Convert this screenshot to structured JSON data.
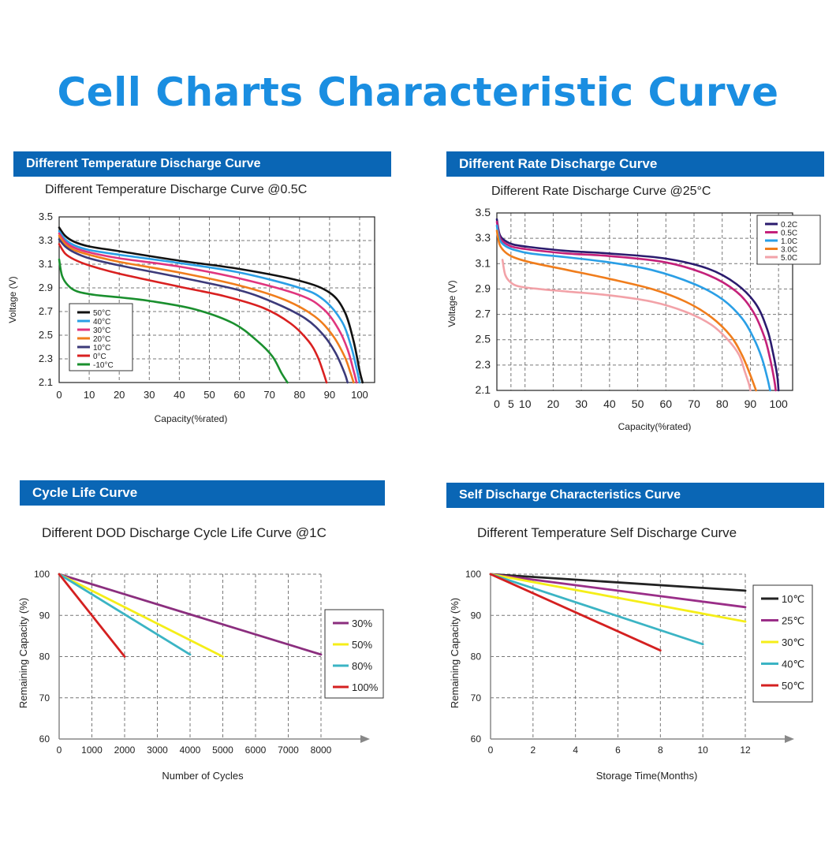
{
  "page_title": "Cell Charts Characteristic Curve",
  "colors": {
    "title_blue": "#1a8ee1",
    "header_bg": "#0a66b5"
  },
  "chart_data": [
    {
      "id": "temp",
      "header": "Different Temperature Discharge Curve",
      "title": "Different Temperature Discharge Curve @0.5C",
      "type": "line",
      "xlabel": "Capacity(%rated)",
      "ylabel": "Voltage (V)",
      "xlim": [
        0,
        105
      ],
      "ylim": [
        2.1,
        3.5
      ],
      "xticks": [
        0,
        10,
        20,
        30,
        40,
        50,
        60,
        70,
        80,
        90,
        100
      ],
      "yticks": [
        2.1,
        2.3,
        2.5,
        2.7,
        2.9,
        3.1,
        3.3,
        3.5
      ],
      "ytick_labels": [
        "2.1",
        "2.3",
        "2.5",
        "2.7",
        "2.9",
        "3.1",
        "3.3",
        "3.5"
      ],
      "grid": true,
      "legend": "left",
      "series": [
        {
          "name": "50°C",
          "color": "#111111",
          "x": [
            0,
            2,
            5,
            10,
            20,
            40,
            60,
            80,
            90,
            95,
            98,
            100,
            101
          ],
          "y": [
            3.41,
            3.34,
            3.29,
            3.25,
            3.21,
            3.13,
            3.06,
            2.96,
            2.86,
            2.7,
            2.45,
            2.2,
            2.1
          ]
        },
        {
          "name": "40°C",
          "color": "#2a9fe6",
          "x": [
            0,
            2,
            5,
            10,
            20,
            40,
            60,
            80,
            88,
            94,
            97,
            99,
            100
          ],
          "y": [
            3.38,
            3.31,
            3.26,
            3.22,
            3.18,
            3.11,
            3.03,
            2.9,
            2.8,
            2.62,
            2.42,
            2.22,
            2.1
          ]
        },
        {
          "name": "30°C",
          "color": "#e0357e",
          "x": [
            0,
            2,
            5,
            10,
            20,
            40,
            60,
            80,
            88,
            93,
            96,
            98,
            99
          ],
          "y": [
            3.36,
            3.29,
            3.24,
            3.2,
            3.15,
            3.08,
            2.98,
            2.84,
            2.72,
            2.55,
            2.38,
            2.2,
            2.1
          ]
        },
        {
          "name": "20°C",
          "color": "#f07d1c",
          "x": [
            0,
            2,
            5,
            10,
            20,
            40,
            60,
            75,
            85,
            91,
            95,
            97,
            98
          ],
          "y": [
            3.34,
            3.27,
            3.22,
            3.18,
            3.12,
            3.03,
            2.92,
            2.8,
            2.66,
            2.5,
            2.32,
            2.18,
            2.1
          ]
        },
        {
          "name": "10°C",
          "color": "#3c3a7a",
          "x": [
            0,
            2,
            5,
            10,
            20,
            40,
            60,
            72,
            82,
            88,
            92,
            95,
            96
          ],
          "y": [
            3.31,
            3.25,
            3.2,
            3.15,
            3.09,
            2.99,
            2.88,
            2.77,
            2.64,
            2.5,
            2.35,
            2.18,
            2.1
          ]
        },
        {
          "name": "0°C",
          "color": "#d92020",
          "x": [
            0,
            2,
            5,
            10,
            20,
            40,
            55,
            68,
            77,
            83,
            86,
            88,
            89
          ],
          "y": [
            3.27,
            3.19,
            3.14,
            3.09,
            3.02,
            2.91,
            2.83,
            2.73,
            2.6,
            2.45,
            2.32,
            2.18,
            2.1
          ]
        },
        {
          "name": "-10°C",
          "color": "#1a8f2e",
          "x": [
            0,
            1,
            3,
            6,
            12,
            20,
            30,
            45,
            58,
            66,
            71,
            74,
            76
          ],
          "y": [
            3.14,
            3.0,
            2.92,
            2.87,
            2.84,
            2.82,
            2.79,
            2.72,
            2.6,
            2.45,
            2.32,
            2.18,
            2.1
          ]
        }
      ]
    },
    {
      "id": "rate",
      "header": "Different Rate Discharge Curve",
      "title": "Different Rate Discharge Curve @25°C",
      "type": "line",
      "xlabel": "Capacity(%rated)",
      "ylabel": "Voltage (V)",
      "xlim": [
        0,
        105
      ],
      "ylim": [
        2.1,
        3.5
      ],
      "xticks": [
        0,
        5,
        10,
        20,
        30,
        40,
        50,
        60,
        70,
        80,
        90,
        100
      ],
      "yticks": [
        2.1,
        2.3,
        2.5,
        2.7,
        2.9,
        3.1,
        3.3,
        3.5
      ],
      "ytick_labels": [
        "2.1",
        "2.3",
        "2.5",
        "2.7",
        "2.9",
        "3.1",
        "3.3",
        "3.5"
      ],
      "grid": true,
      "legend": "top-right",
      "series": [
        {
          "name": "0.2C",
          "color": "#2b1b6e",
          "x": [
            0,
            1,
            3,
            6,
            12,
            25,
            40,
            60,
            75,
            85,
            92,
            96,
            98,
            99.5,
            100
          ],
          "y": [
            3.45,
            3.33,
            3.28,
            3.25,
            3.23,
            3.2,
            3.18,
            3.14,
            3.06,
            2.94,
            2.78,
            2.58,
            2.4,
            2.22,
            2.1
          ]
        },
        {
          "name": "0.5C",
          "color": "#c4217a",
          "x": [
            0,
            1,
            3,
            6,
            12,
            25,
            40,
            60,
            75,
            85,
            91,
            95,
            97,
            98.5,
            99
          ],
          "y": [
            3.43,
            3.31,
            3.26,
            3.23,
            3.21,
            3.18,
            3.16,
            3.11,
            3.01,
            2.88,
            2.72,
            2.52,
            2.35,
            2.18,
            2.1
          ]
        },
        {
          "name": "1.0C",
          "color": "#2a9fe6",
          "x": [
            0,
            1,
            3,
            6,
            12,
            25,
            40,
            55,
            70,
            80,
            87,
            91,
            94,
            96,
            97
          ],
          "y": [
            3.4,
            3.29,
            3.24,
            3.21,
            3.18,
            3.15,
            3.11,
            3.05,
            2.94,
            2.82,
            2.67,
            2.52,
            2.36,
            2.2,
            2.1
          ]
        },
        {
          "name": "3.0C",
          "color": "#f07d1c",
          "x": [
            0,
            1,
            3,
            6,
            12,
            25,
            40,
            55,
            67,
            76,
            83,
            87,
            90,
            92
          ],
          "y": [
            3.36,
            3.25,
            3.19,
            3.15,
            3.11,
            3.05,
            2.98,
            2.9,
            2.8,
            2.68,
            2.53,
            2.38,
            2.22,
            2.1
          ]
        },
        {
          "name": "5.0C",
          "color": "#f2a2a8",
          "x": [
            2,
            3,
            5,
            8,
            15,
            25,
            40,
            55,
            67,
            76,
            82,
            86,
            88,
            89.5,
            90
          ],
          "y": [
            3.13,
            3.01,
            2.95,
            2.92,
            2.9,
            2.88,
            2.85,
            2.8,
            2.72,
            2.62,
            2.5,
            2.38,
            2.25,
            2.15,
            2.1
          ]
        }
      ]
    },
    {
      "id": "cycle",
      "header": "Cycle Life Curve",
      "title": "Different DOD Discharge Cycle Life Curve @1C",
      "type": "line",
      "xlabel": "Number of Cycles",
      "ylabel": "Remaining Capacity (%)",
      "xlim": [
        0,
        8000
      ],
      "ylim": [
        60,
        100
      ],
      "xticks": [
        0,
        1000,
        2000,
        3000,
        4000,
        5000,
        6000,
        7000,
        8000
      ],
      "yticks": [
        60,
        70,
        80,
        90,
        100
      ],
      "ytick_labels": [
        "60",
        "70",
        "80",
        "90",
        "100"
      ],
      "grid": true,
      "legend": "right",
      "series": [
        {
          "name": "30%",
          "color": "#8b2e7e",
          "x": [
            0,
            8000
          ],
          "y": [
            100,
            80.5
          ]
        },
        {
          "name": "50%",
          "color": "#f5ee18",
          "x": [
            0,
            5000
          ],
          "y": [
            100,
            80
          ]
        },
        {
          "name": "80%",
          "color": "#3bb4c4",
          "x": [
            0,
            4000
          ],
          "y": [
            100,
            80.5
          ]
        },
        {
          "name": "100%",
          "color": "#d42020",
          "x": [
            0,
            2000
          ],
          "y": [
            100,
            80
          ]
        }
      ]
    },
    {
      "id": "self",
      "header": "Self Discharge Characteristics Curve",
      "title": "Different Temperature Self Discharge Curve",
      "type": "line",
      "xlabel": "Storage Time(Months)",
      "ylabel": "Remaining Capacity (%)",
      "xlim": [
        0,
        12
      ],
      "ylim": [
        60,
        100
      ],
      "xticks": [
        0,
        2,
        4,
        6,
        8,
        10,
        12
      ],
      "yticks": [
        60,
        70,
        80,
        90,
        100
      ],
      "ytick_labels": [
        "60",
        "70",
        "80",
        "90",
        "100"
      ],
      "grid": true,
      "legend": "right",
      "series": [
        {
          "name": "10℃",
          "color": "#222222",
          "x": [
            0,
            12
          ],
          "y": [
            100,
            96
          ]
        },
        {
          "name": "25℃",
          "color": "#9a2e88",
          "x": [
            0,
            12
          ],
          "y": [
            100,
            92
          ]
        },
        {
          "name": "30℃",
          "color": "#f5ee18",
          "x": [
            0,
            12
          ],
          "y": [
            100,
            88.5
          ]
        },
        {
          "name": "40℃",
          "color": "#3bb4c4",
          "x": [
            0,
            10
          ],
          "y": [
            100,
            83
          ]
        },
        {
          "name": "50℃",
          "color": "#d42020",
          "x": [
            0,
            8
          ],
          "y": [
            100,
            81.5
          ]
        }
      ]
    }
  ]
}
